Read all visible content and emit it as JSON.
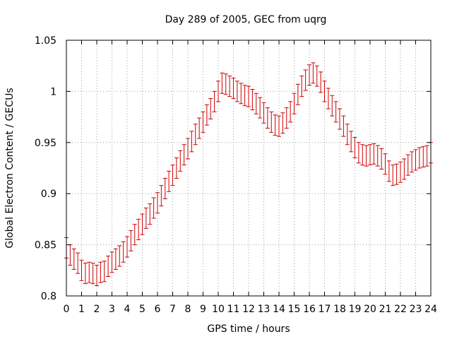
{
  "chart_data": {
    "type": "line",
    "title": "Day 289 of 2005, GEC from uqrg",
    "xlabel": "GPS time / hours",
    "ylabel": "Global Electron Content / GECUs",
    "xlim": [
      0,
      24
    ],
    "ylim": [
      0.8,
      1.05
    ],
    "xticks": [
      0,
      1,
      2,
      3,
      4,
      5,
      6,
      7,
      8,
      9,
      10,
      11,
      12,
      13,
      14,
      15,
      16,
      17,
      18,
      19,
      20,
      21,
      22,
      23,
      24
    ],
    "xtick_labels": [
      "0",
      "1",
      "2",
      "3",
      "4",
      "5",
      "6",
      "7",
      "8",
      "9",
      "10",
      "11",
      "12",
      "13",
      "14",
      "15",
      "16",
      "17",
      "18",
      "19",
      "20",
      "21",
      "22",
      "23",
      "24"
    ],
    "yticks": [
      0.8,
      0.85,
      0.9,
      0.95,
      1.0,
      1.05
    ],
    "ytick_labels": [
      "0.8",
      "0.85",
      "0.9",
      "0.95",
      "1",
      "1.05"
    ],
    "grid": true,
    "series_color": "#cc0000",
    "error": 0.01,
    "x": [
      0,
      0.25,
      0.5,
      0.75,
      1,
      1.25,
      1.5,
      1.75,
      2,
      2.25,
      2.5,
      2.75,
      3,
      3.25,
      3.5,
      3.75,
      4,
      4.25,
      4.5,
      4.75,
      5,
      5.25,
      5.5,
      5.75,
      6,
      6.25,
      6.5,
      6.75,
      7,
      7.25,
      7.5,
      7.75,
      8,
      8.25,
      8.5,
      8.75,
      9,
      9.25,
      9.5,
      9.75,
      10,
      10.25,
      10.5,
      10.75,
      11,
      11.25,
      11.5,
      11.75,
      12,
      12.25,
      12.5,
      12.75,
      13,
      13.25,
      13.5,
      13.75,
      14,
      14.25,
      14.5,
      14.75,
      15,
      15.25,
      15.5,
      15.75,
      16,
      16.25,
      16.5,
      16.75,
      17,
      17.25,
      17.5,
      17.75,
      18,
      18.25,
      18.5,
      18.75,
      19,
      19.25,
      19.5,
      19.75,
      20,
      20.25,
      20.5,
      20.75,
      21,
      21.25,
      21.5,
      21.75,
      22,
      22.25,
      22.5,
      22.75,
      23,
      23.25,
      23.5,
      23.75,
      24
    ],
    "y": [
      0.847,
      0.84,
      0.836,
      0.832,
      0.825,
      0.822,
      0.823,
      0.822,
      0.82,
      0.823,
      0.824,
      0.829,
      0.833,
      0.836,
      0.839,
      0.843,
      0.848,
      0.854,
      0.86,
      0.865,
      0.87,
      0.876,
      0.88,
      0.886,
      0.891,
      0.898,
      0.905,
      0.912,
      0.918,
      0.925,
      0.932,
      0.938,
      0.944,
      0.951,
      0.958,
      0.964,
      0.97,
      0.977,
      0.983,
      0.99,
      1.0,
      1.008,
      1.007,
      1.005,
      1.003,
      1.0,
      0.998,
      0.996,
      0.995,
      0.992,
      0.988,
      0.984,
      0.979,
      0.974,
      0.97,
      0.967,
      0.966,
      0.969,
      0.974,
      0.98,
      0.988,
      0.997,
      1.005,
      1.011,
      1.016,
      1.018,
      1.015,
      1.009,
      1.0,
      0.993,
      0.986,
      0.98,
      0.973,
      0.966,
      0.958,
      0.951,
      0.945,
      0.94,
      0.938,
      0.937,
      0.938,
      0.939,
      0.937,
      0.934,
      0.929,
      0.922,
      0.918,
      0.919,
      0.921,
      0.924,
      0.928,
      0.931,
      0.933,
      0.935,
      0.936,
      0.937,
      0.94
    ]
  }
}
